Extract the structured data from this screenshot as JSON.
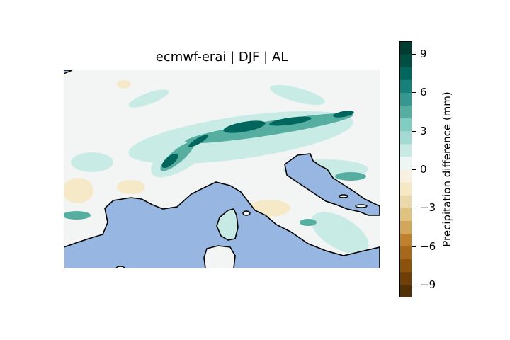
{
  "title": "ecmwf-erai | DJF | AL",
  "colorbar": {
    "label": "Precipitation difference (mm)",
    "ticks": [
      "9",
      "6",
      "3",
      "0",
      "−3",
      "−6",
      "−9"
    ],
    "tick_values": [
      9,
      6,
      3,
      0,
      -3,
      -6,
      -9
    ],
    "range": [
      -10,
      10
    ],
    "colors": [
      "#543005",
      "#6f3f07",
      "#8c510a",
      "#a6681a",
      "#bf812d",
      "#d2a75b",
      "#dfc27d",
      "#ecd9ab",
      "#f6e8c3",
      "#f8f1e1",
      "#eef6f5",
      "#c7eae5",
      "#a3dbd3",
      "#80cdc1",
      "#55ae9f",
      "#35978f",
      "#18807a",
      "#01665e",
      "#004d42",
      "#003c30"
    ]
  },
  "map": {
    "ocean_color": "#97b6e1",
    "land_base_color": "#f2f5f4",
    "coastline_color": "#000000"
  }
}
